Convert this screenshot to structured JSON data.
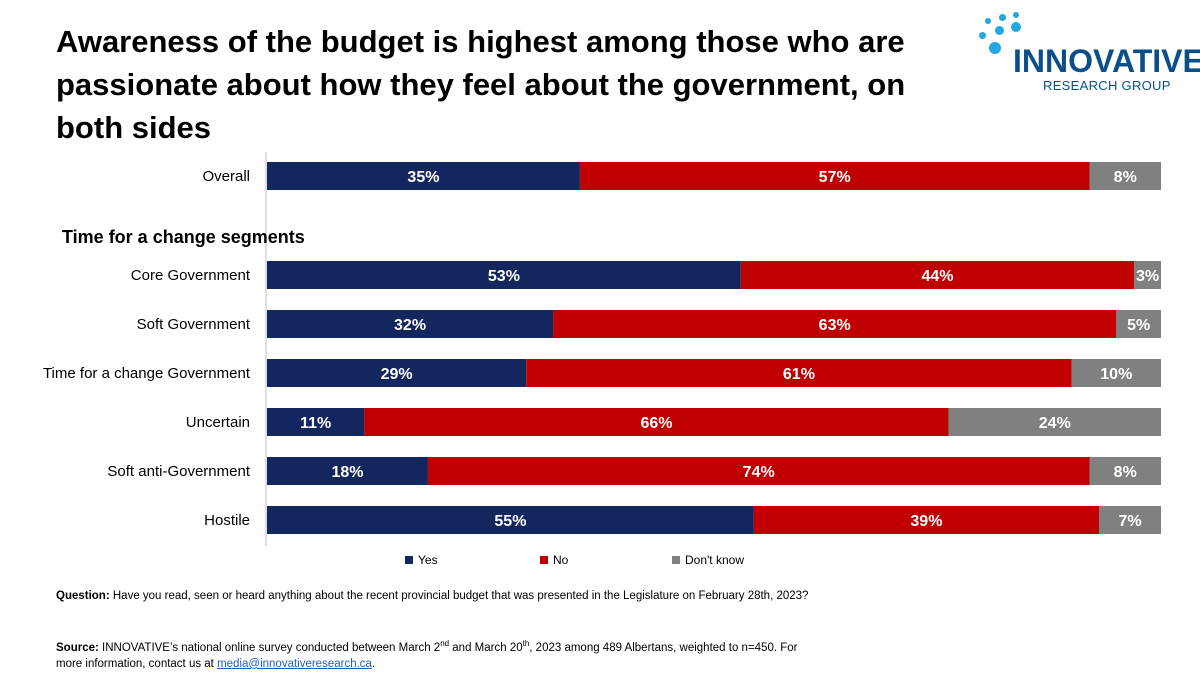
{
  "title": "Awareness of the budget is highest among those who are passionate about how they feel about the government, on both sides",
  "logo": {
    "word": "INNOVATIVE",
    "sub": "RESEARCH GROUP"
  },
  "colors": {
    "yes": "#14265e",
    "no": "#c00000",
    "dont_know": "#808080"
  },
  "chart_data": {
    "type": "bar",
    "orientation": "horizontal-stacked-100",
    "series_names": [
      "Yes",
      "No",
      "Don't know"
    ],
    "section_label": "Time for a change segments",
    "rows": [
      {
        "label": "Overall",
        "values": [
          35,
          57,
          8
        ],
        "labels": [
          "35%",
          "57%",
          "8%"
        ]
      },
      {
        "label": "Core Government",
        "values": [
          53,
          44,
          3
        ],
        "labels": [
          "53%",
          "44%",
          "3%"
        ]
      },
      {
        "label": "Soft Government",
        "values": [
          32,
          63,
          5
        ],
        "labels": [
          "32%",
          "63%",
          "5%"
        ]
      },
      {
        "label": "Time for a change Government",
        "values": [
          29,
          61,
          10
        ],
        "labels": [
          "29%",
          "61%",
          "10%"
        ]
      },
      {
        "label": "Uncertain",
        "values": [
          11,
          66,
          24
        ],
        "labels": [
          "11%",
          "66%",
          "24%"
        ]
      },
      {
        "label": "Soft anti-Government",
        "values": [
          18,
          74,
          8
        ],
        "labels": [
          "18%",
          "74%",
          "8%"
        ]
      },
      {
        "label": "Hostile",
        "values": [
          55,
          39,
          7
        ],
        "labels": [
          "55%",
          "39%",
          "7%"
        ]
      }
    ]
  },
  "legend": {
    "yes": "Yes",
    "no": "No",
    "dont_know": "Don't know"
  },
  "question": {
    "label": "Question:",
    "text": "Have you read, seen or heard anything about the recent provincial budget that was presented in the Legislature on February 28th, 2023?"
  },
  "source": {
    "label": "Source:",
    "text_1": "INNOVATIVE’s national online survey conducted between March 2",
    "sup_1": "nd",
    "text_2": " and March 20",
    "sup_2": "th",
    "text_3": ",  2023  among 489  Albertans, weighted to n=450.  For more information, contact us at ",
    "email": "media@innovativeresearch.ca",
    "end": "."
  }
}
